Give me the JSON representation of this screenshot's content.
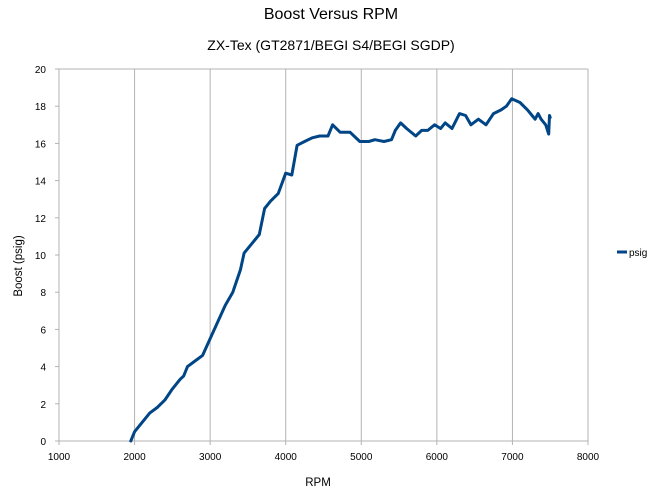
{
  "chart_data": {
    "type": "line",
    "title": "Boost Versus RPM",
    "subtitle": "ZX-Tex (GT2871/BEGI S4/BEGI SGDP)",
    "xlabel": "RPM",
    "ylabel": "Boost (psig)",
    "xlim": [
      1000,
      8000
    ],
    "ylim": [
      0,
      20
    ],
    "xticks": [
      1000,
      2000,
      3000,
      4000,
      5000,
      6000,
      7000,
      8000
    ],
    "yticks": [
      0,
      2,
      4,
      6,
      8,
      10,
      12,
      14,
      16,
      18,
      20
    ],
    "grid": "vertical",
    "legend": "right",
    "series": [
      {
        "name": "psig",
        "color": "#004586",
        "points": [
          [
            1950,
            0.0
          ],
          [
            2000,
            0.5
          ],
          [
            2100,
            1.0
          ],
          [
            2200,
            1.5
          ],
          [
            2300,
            1.8
          ],
          [
            2400,
            2.2
          ],
          [
            2500,
            2.8
          ],
          [
            2600,
            3.3
          ],
          [
            2650,
            3.5
          ],
          [
            2700,
            4.0
          ],
          [
            2800,
            4.3
          ],
          [
            2900,
            4.6
          ],
          [
            3000,
            5.5
          ],
          [
            3100,
            6.4
          ],
          [
            3200,
            7.3
          ],
          [
            3300,
            8.0
          ],
          [
            3350,
            8.6
          ],
          [
            3400,
            9.2
          ],
          [
            3450,
            10.1
          ],
          [
            3550,
            10.6
          ],
          [
            3650,
            11.1
          ],
          [
            3720,
            12.5
          ],
          [
            3800,
            12.9
          ],
          [
            3900,
            13.3
          ],
          [
            4000,
            14.4
          ],
          [
            4080,
            14.3
          ],
          [
            4150,
            15.9
          ],
          [
            4250,
            16.1
          ],
          [
            4350,
            16.3
          ],
          [
            4450,
            16.4
          ],
          [
            4560,
            16.4
          ],
          [
            4620,
            17.0
          ],
          [
            4720,
            16.6
          ],
          [
            4850,
            16.6
          ],
          [
            4980,
            16.1
          ],
          [
            5100,
            16.1
          ],
          [
            5180,
            16.2
          ],
          [
            5300,
            16.1
          ],
          [
            5400,
            16.2
          ],
          [
            5450,
            16.7
          ],
          [
            5520,
            17.1
          ],
          [
            5600,
            16.8
          ],
          [
            5720,
            16.4
          ],
          [
            5800,
            16.7
          ],
          [
            5880,
            16.7
          ],
          [
            5970,
            17.0
          ],
          [
            6050,
            16.8
          ],
          [
            6110,
            17.1
          ],
          [
            6200,
            16.8
          ],
          [
            6300,
            17.6
          ],
          [
            6380,
            17.5
          ],
          [
            6450,
            17.0
          ],
          [
            6550,
            17.3
          ],
          [
            6650,
            17.0
          ],
          [
            6750,
            17.6
          ],
          [
            6850,
            17.8
          ],
          [
            6920,
            18.0
          ],
          [
            6990,
            18.4
          ],
          [
            7100,
            18.2
          ],
          [
            7200,
            17.8
          ],
          [
            7260,
            17.5
          ],
          [
            7300,
            17.3
          ],
          [
            7340,
            17.6
          ],
          [
            7380,
            17.3
          ],
          [
            7440,
            17.0
          ],
          [
            7480,
            16.5
          ],
          [
            7490,
            17.5
          ],
          [
            7500,
            17.4
          ]
        ]
      }
    ]
  }
}
